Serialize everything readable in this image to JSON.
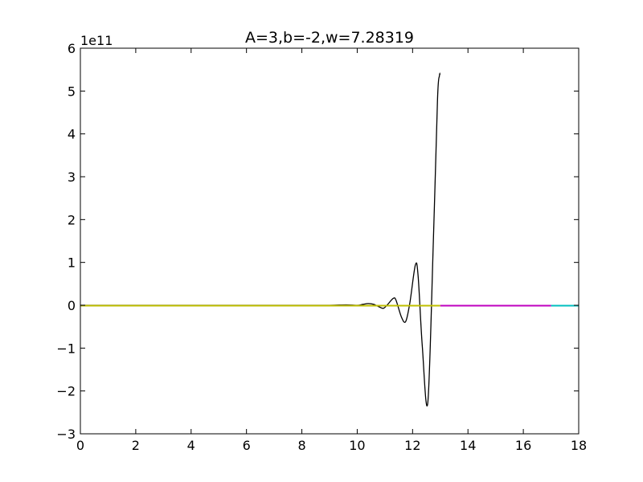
{
  "chart_data": {
    "type": "line",
    "title": "A=3,b=-2,w=7.28319",
    "xlabel": "",
    "ylabel": "",
    "y_offset_label": "1e11",
    "y_scale_factor": 100000000000,
    "xlim": [
      0,
      18
    ],
    "ylim": [
      -3,
      6
    ],
    "x_ticks": [
      0,
      2,
      4,
      6,
      8,
      10,
      12,
      14,
      16,
      18
    ],
    "x_tick_labels": [
      "0",
      "2",
      "4",
      "6",
      "8",
      "10",
      "12",
      "14",
      "16",
      "18"
    ],
    "y_ticks": [
      -3,
      -2,
      -1,
      0,
      1,
      2,
      3,
      4,
      5,
      6
    ],
    "y_tick_labels": [
      "−3",
      "−2",
      "−1",
      "0",
      "1",
      "2",
      "3",
      "4",
      "5",
      "6"
    ],
    "grid": false,
    "series": [
      {
        "color": "#000000",
        "x": [
          0,
          2,
          4,
          6,
          8,
          9,
          9.6,
          10.0,
          10.2,
          10.4,
          10.6,
          10.8,
          10.95,
          11.1,
          11.3,
          11.4,
          11.6,
          11.75,
          11.9,
          12.1,
          12.2,
          12.35,
          12.55,
          12.75,
          12.9,
          12.97,
          13.0
        ],
        "y": [
          0,
          0,
          0,
          0,
          0,
          0,
          0.01,
          0.0,
          0.02,
          0.04,
          0.02,
          -0.04,
          -0.07,
          0.02,
          0.16,
          0.12,
          -0.28,
          -0.38,
          0.05,
          0.94,
          0.68,
          -0.95,
          -2.27,
          1.5,
          4.8,
          5.36,
          5.4
        ]
      },
      {
        "color": "#bfbf00",
        "x": [
          0,
          13
        ],
        "y": [
          -0.01,
          -0.01
        ]
      },
      {
        "color": "#bf00bf",
        "x": [
          13,
          17
        ],
        "y": [
          -0.01,
          -0.01
        ]
      },
      {
        "color": "#00bfbf",
        "x": [
          17,
          18
        ],
        "y": [
          -0.01,
          -0.01
        ]
      }
    ]
  }
}
